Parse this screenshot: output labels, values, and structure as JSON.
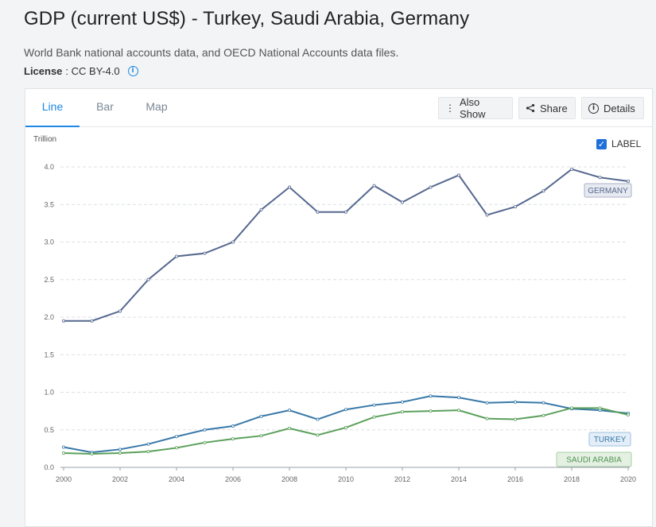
{
  "header": {
    "title": "GDP (current US$) - Turkey, Saudi Arabia, Germany",
    "source": "World Bank national accounts data, and OECD National Accounts data files.",
    "license_label": "License",
    "license_value": ": CC BY-4.0"
  },
  "tabs": [
    {
      "label": "Line",
      "active": true
    },
    {
      "label": "Bar",
      "active": false
    },
    {
      "label": "Map",
      "active": false
    }
  ],
  "toolbar": {
    "also_show": "Also Show",
    "share": "Share",
    "details": "Details"
  },
  "label_toggle": {
    "label": "LABEL",
    "checked": true
  },
  "colors": {
    "accent": "#1e88e5",
    "germany": "#56688f",
    "turkey": "#3878a8",
    "saudi": "#5ba05b"
  },
  "chart_data": {
    "type": "line",
    "title": "",
    "unit_label": "Trillion",
    "xlabel": "",
    "ylabel": "Trillion",
    "xlim": [
      2000,
      2020
    ],
    "ylim": [
      0,
      4.0
    ],
    "x_ticks": [
      2000,
      2002,
      2004,
      2006,
      2008,
      2010,
      2012,
      2014,
      2016,
      2018,
      2020
    ],
    "y_ticks": [
      "0.0",
      "0.5",
      "1.0",
      "1.5",
      "2.0",
      "2.5",
      "3.0",
      "3.5",
      "4.0"
    ],
    "grid": true,
    "x": [
      2000,
      2001,
      2002,
      2003,
      2004,
      2005,
      2006,
      2007,
      2008,
      2009,
      2010,
      2011,
      2012,
      2013,
      2014,
      2015,
      2016,
      2017,
      2018,
      2019,
      2020
    ],
    "series": [
      {
        "name": "GERMANY",
        "color": "#56688f",
        "values": [
          1.95,
          1.95,
          2.08,
          2.5,
          2.81,
          2.85,
          3.0,
          3.43,
          3.73,
          3.4,
          3.4,
          3.75,
          3.53,
          3.73,
          3.89,
          3.36,
          3.47,
          3.68,
          3.97,
          3.86,
          3.81
        ]
      },
      {
        "name": "TURKEY",
        "color": "#3878a8",
        "values": [
          0.27,
          0.2,
          0.24,
          0.31,
          0.41,
          0.5,
          0.55,
          0.68,
          0.76,
          0.64,
          0.77,
          0.83,
          0.87,
          0.95,
          0.93,
          0.86,
          0.87,
          0.86,
          0.78,
          0.76,
          0.72
        ]
      },
      {
        "name": "SAUDI ARABIA",
        "color": "#5ba05b",
        "values": [
          0.19,
          0.18,
          0.19,
          0.21,
          0.26,
          0.33,
          0.38,
          0.42,
          0.52,
          0.43,
          0.53,
          0.67,
          0.74,
          0.75,
          0.76,
          0.65,
          0.64,
          0.69,
          0.79,
          0.79,
          0.7
        ]
      }
    ]
  }
}
